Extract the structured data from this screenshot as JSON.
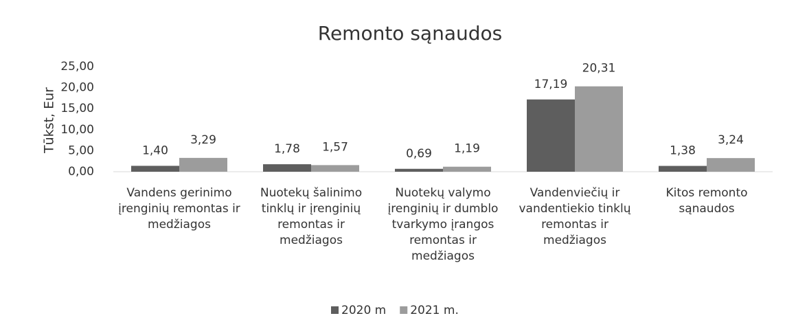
{
  "chart_data": {
    "type": "bar",
    "title": "Remonto sąnaudos",
    "y_label": "Tūkst, Eur",
    "categories": [
      "Vandens gerinimo įrenginių remontas ir medžiagos",
      "Nuotekų šalinimo tinklų ir įrenginių remontas ir medžiagos",
      "Nuotekų valymo įrenginių ir dumblo tvarkymo įrangos remontas ir medžiagos",
      "Vandenviečių ir vandentiekio tinklų remontas ir medžiagos",
      "Kitos remonto sąnaudos"
    ],
    "series": [
      {
        "name": "2020 m",
        "color": "#5e5e5e",
        "values": [
          1.4,
          1.78,
          0.69,
          17.19,
          1.38
        ],
        "value_labels": [
          "1,40",
          "1,78",
          "0,69",
          "17,19",
          "1,38"
        ]
      },
      {
        "name": "2021 m.",
        "color": "#9c9c9c",
        "values": [
          3.29,
          1.57,
          1.19,
          20.31,
          3.24
        ],
        "value_labels": [
          "3,29",
          "1,57",
          "1,19",
          "20,31",
          "3,24"
        ]
      }
    ],
    "ylim": [
      0,
      25
    ],
    "yticks": [
      {
        "value": 0,
        "label": "0,00"
      },
      {
        "value": 5,
        "label": "5,00"
      },
      {
        "value": 10,
        "label": "10,00"
      },
      {
        "value": 15,
        "label": "15,00"
      },
      {
        "value": 20,
        "label": "20,00"
      },
      {
        "value": 25,
        "label": "25,00"
      }
    ],
    "grid": false,
    "legend": "bottom"
  }
}
